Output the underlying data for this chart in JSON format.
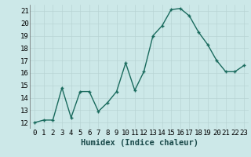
{
  "x": [
    0,
    1,
    2,
    3,
    4,
    5,
    6,
    7,
    8,
    9,
    10,
    11,
    12,
    13,
    14,
    15,
    16,
    17,
    18,
    19,
    20,
    21,
    22,
    23
  ],
  "y": [
    12,
    12.2,
    12.2,
    14.8,
    12.4,
    14.5,
    14.5,
    12.9,
    13.6,
    14.5,
    16.8,
    14.6,
    16.1,
    19.0,
    19.8,
    21.1,
    21.2,
    20.6,
    19.3,
    18.3,
    17.0,
    16.1,
    16.1,
    16.6
  ],
  "bg_color": "#cce8e8",
  "line_color": "#1a6b5e",
  "marker_color": "#1a6b5e",
  "grid_color": "#b8d4d4",
  "xlabel": "Humidex (Indice chaleur)",
  "ylim": [
    11.5,
    21.5
  ],
  "xlim": [
    -0.5,
    23.5
  ],
  "yticks": [
    12,
    13,
    14,
    15,
    16,
    17,
    18,
    19,
    20,
    21
  ],
  "xticks": [
    0,
    1,
    2,
    3,
    4,
    5,
    6,
    7,
    8,
    9,
    10,
    11,
    12,
    13,
    14,
    15,
    16,
    17,
    18,
    19,
    20,
    21,
    22,
    23
  ],
  "xtick_labels": [
    "0",
    "1",
    "2",
    "3",
    "4",
    "5",
    "6",
    "7",
    "8",
    "9",
    "10",
    "11",
    "12",
    "13",
    "14",
    "15",
    "16",
    "17",
    "18",
    "19",
    "20",
    "21",
    "22",
    "23"
  ],
  "xlabel_fontsize": 7.5,
  "tick_fontsize": 6.5,
  "line_width": 1.0,
  "marker_size": 3.5
}
